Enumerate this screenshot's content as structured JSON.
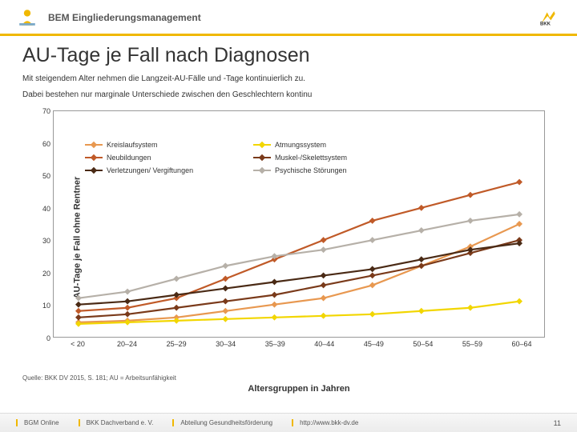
{
  "header": {
    "title": "BEM Eingliederungsmanagement"
  },
  "title": "AU-Tage je Fall nach Diagnosen",
  "subtitle1": "Mit steigendem Alter nehmen die Langzeit-AU-Fälle und -Tage kontinuierlich zu.",
  "subtitle2": "Dabei bestehen nur marginale Unterschiede zwischen den Geschlechtern kontinu",
  "source": "Quelle: BKK DV 2015, S. 181; AU = Arbeitsunfähigkeit",
  "footer": {
    "seg1": "BGM Online",
    "seg2": "BKK Dachverband e. V.",
    "seg3": "Abteilung Gesundheitsförderung",
    "seg4": "http://www.bkk-dv.de",
    "page": "11"
  },
  "chart": {
    "type": "line",
    "ylabel": "AU-Tage je Fall ohne Rentner",
    "xlabel": "Altersgruppen in Jahren",
    "ylim": [
      0,
      70
    ],
    "ytick_step": 10,
    "categories": [
      "< 20",
      "20–24",
      "25–29",
      "30–34",
      "35–39",
      "40–44",
      "45–49",
      "50–54",
      "55–59",
      "60–64"
    ],
    "background": "#ffffff",
    "border": "#999999",
    "marker_size": 4,
    "line_width": 2.2,
    "series": [
      {
        "name": "Kreislaufsystem",
        "color": "#e89850",
        "values": [
          4.5,
          5,
          6,
          8,
          10,
          12,
          16,
          22,
          28,
          35
        ]
      },
      {
        "name": "Atmungssystem",
        "color": "#f2d600",
        "values": [
          4,
          4.5,
          5,
          5.5,
          6,
          6.5,
          7,
          8,
          9,
          11
        ]
      },
      {
        "name": "Neubildungen",
        "color": "#c05a28",
        "values": [
          8,
          9,
          12,
          18,
          24,
          30,
          36,
          40,
          44,
          48
        ]
      },
      {
        "name": "Muskel-/Skelettsystem",
        "color": "#7a3a1a",
        "values": [
          6,
          7,
          9,
          11,
          13,
          16,
          19,
          22,
          26,
          30
        ]
      },
      {
        "name": "Verletzungen/ Vergiftungen",
        "color": "#4a2a15",
        "values": [
          10,
          11,
          13,
          15,
          17,
          19,
          21,
          24,
          27,
          29
        ]
      },
      {
        "name": "Psychische Störungen",
        "color": "#b6b0a8",
        "values": [
          12,
          14,
          18,
          22,
          25,
          27,
          30,
          33,
          36,
          38
        ]
      }
    ],
    "legend": {
      "cols": 2,
      "fontsize": 9
    }
  }
}
